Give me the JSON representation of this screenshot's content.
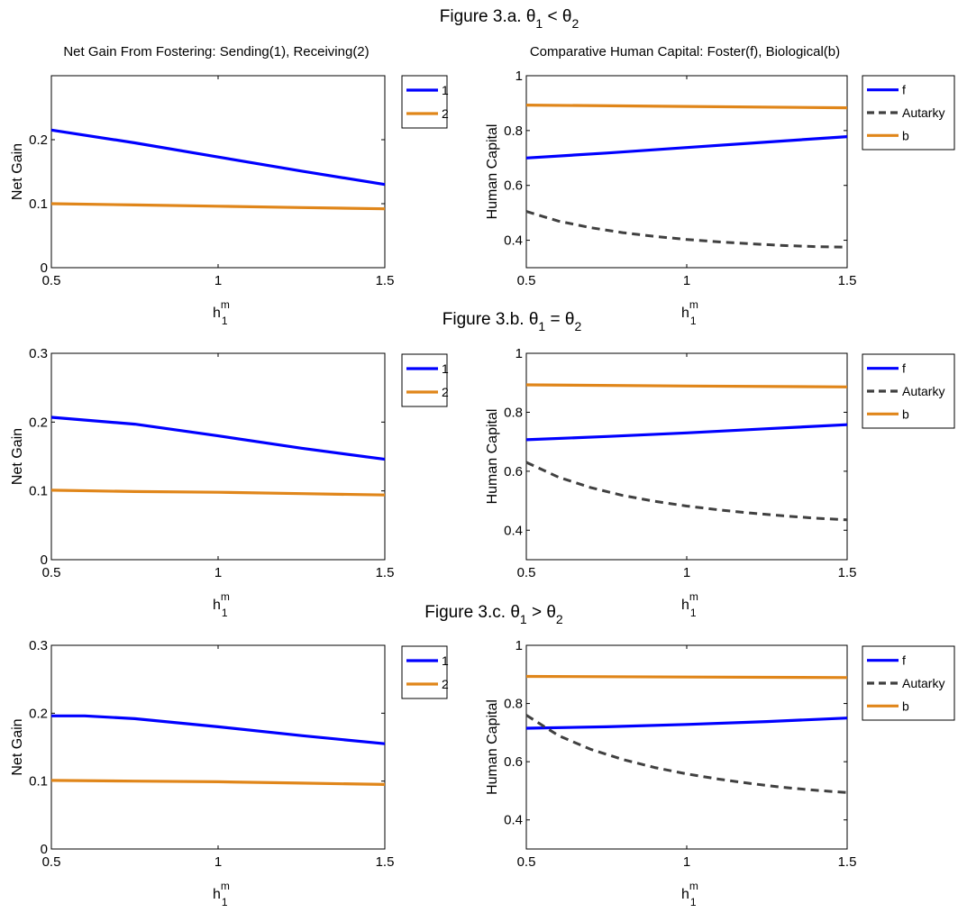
{
  "figure_titles": [
    {
      "prefix": "Figure 3.a. θ",
      "sub1": "1",
      "rel": " < θ",
      "sub2": "2"
    },
    {
      "prefix": "Figure 3.b. θ",
      "sub1": "1",
      "rel": " = θ",
      "sub2": "2"
    },
    {
      "prefix": "Figure 3.c. θ",
      "sub1": "1",
      "rel": " > θ",
      "sub2": "2"
    }
  ],
  "column_titles": {
    "left": "Net Gain From Fostering: Sending(1), Receiving(2)",
    "right": "Comparative Human Capital: Foster(f), Biological(b)"
  },
  "xlabel": {
    "base": "h",
    "sup": "m",
    "sub": "1"
  },
  "colors": {
    "blue": "#0000ff",
    "orange": "#e0861a",
    "gray": "#404040",
    "axis": "#000000",
    "background": "#ffffff"
  },
  "chart_data": [
    {
      "type": "line",
      "panel": "3.a-left",
      "title": "Net Gain From Fostering: Sending(1), Receiving(2)",
      "xlabel": "h1m",
      "ylabel": "Net Gain",
      "xlim": [
        0.5,
        1.5
      ],
      "ylim": [
        0,
        0.3
      ],
      "xticks": [
        0.5,
        1,
        1.5
      ],
      "xticklabels": [
        "0.5",
        "1",
        "1.5"
      ],
      "yticks": [
        0,
        0.1,
        0.2
      ],
      "yticklabels": [
        "0",
        "0.1",
        "0.2"
      ],
      "legend": "outside-right-top",
      "series": [
        {
          "name": "1",
          "color": "blue",
          "dash": "solid",
          "x": [
            0.5,
            0.75,
            1.0,
            1.25,
            1.5
          ],
          "y": [
            0.215,
            0.195,
            0.173,
            0.151,
            0.13
          ]
        },
        {
          "name": "2",
          "color": "orange",
          "dash": "solid",
          "x": [
            0.5,
            0.75,
            1.0,
            1.25,
            1.5
          ],
          "y": [
            0.1,
            0.098,
            0.096,
            0.094,
            0.092
          ]
        }
      ]
    },
    {
      "type": "line",
      "panel": "3.a-right",
      "title": "Comparative Human Capital: Foster(f), Biological(b)",
      "xlabel": "h1m",
      "ylabel": "Human Capital",
      "xlim": [
        0.5,
        1.5
      ],
      "ylim": [
        0.3,
        1.0
      ],
      "xticks": [
        0.5,
        1,
        1.5
      ],
      "xticklabels": [
        "0.5",
        "1",
        "1.5"
      ],
      "yticks": [
        0.4,
        0.6,
        0.8,
        1.0
      ],
      "yticklabels": [
        "0.4",
        "0.6",
        "0.8",
        "1"
      ],
      "legend": "outside-right-top",
      "series": [
        {
          "name": "f",
          "color": "blue",
          "dash": "solid",
          "x": [
            0.5,
            0.75,
            1.0,
            1.25,
            1.5
          ],
          "y": [
            0.7,
            0.718,
            0.738,
            0.758,
            0.778
          ]
        },
        {
          "name": "Autarky",
          "color": "gray",
          "dash": "dashed",
          "x": [
            0.5,
            0.6,
            0.7,
            0.8,
            0.9,
            1.0,
            1.1,
            1.2,
            1.3,
            1.4,
            1.5
          ],
          "y": [
            0.505,
            0.47,
            0.446,
            0.428,
            0.414,
            0.403,
            0.394,
            0.387,
            0.381,
            0.377,
            0.375
          ]
        },
        {
          "name": "b",
          "color": "orange",
          "dash": "solid",
          "x": [
            0.5,
            1.0,
            1.5
          ],
          "y": [
            0.893,
            0.888,
            0.883
          ]
        }
      ]
    },
    {
      "type": "line",
      "panel": "3.b-left",
      "xlabel": "h1m",
      "ylabel": "Net Gain",
      "xlim": [
        0.5,
        1.5
      ],
      "ylim": [
        0,
        0.3
      ],
      "xticks": [
        0.5,
        1,
        1.5
      ],
      "xticklabels": [
        "0.5",
        "1",
        "1.5"
      ],
      "yticks": [
        0,
        0.1,
        0.2,
        0.3
      ],
      "yticklabels": [
        "0",
        "0.1",
        "0.2",
        "0.3"
      ],
      "legend": "outside-right-top",
      "series": [
        {
          "name": "1",
          "color": "blue",
          "dash": "solid",
          "x": [
            0.5,
            0.75,
            1.0,
            1.25,
            1.5
          ],
          "y": [
            0.207,
            0.197,
            0.18,
            0.162,
            0.146
          ]
        },
        {
          "name": "2",
          "color": "orange",
          "dash": "solid",
          "x": [
            0.5,
            0.75,
            1.0,
            1.25,
            1.5
          ],
          "y": [
            0.101,
            0.099,
            0.098,
            0.096,
            0.094
          ]
        }
      ]
    },
    {
      "type": "line",
      "panel": "3.b-right",
      "xlabel": "h1m",
      "ylabel": "Human Capital",
      "xlim": [
        0.5,
        1.5
      ],
      "ylim": [
        0.3,
        1.0
      ],
      "xticks": [
        0.5,
        1,
        1.5
      ],
      "xticklabels": [
        "0.5",
        "1",
        "1.5"
      ],
      "yticks": [
        0.4,
        0.6,
        0.8,
        1.0
      ],
      "yticklabels": [
        "0.4",
        "0.6",
        "0.8",
        "1"
      ],
      "legend": "outside-right-top",
      "series": [
        {
          "name": "f",
          "color": "blue",
          "dash": "solid",
          "x": [
            0.5,
            0.75,
            1.0,
            1.25,
            1.5
          ],
          "y": [
            0.707,
            0.718,
            0.73,
            0.744,
            0.758
          ]
        },
        {
          "name": "Autarky",
          "color": "gray",
          "dash": "dashed",
          "x": [
            0.5,
            0.6,
            0.7,
            0.8,
            0.9,
            1.0,
            1.1,
            1.2,
            1.3,
            1.4,
            1.5
          ],
          "y": [
            0.63,
            0.58,
            0.545,
            0.518,
            0.498,
            0.482,
            0.469,
            0.458,
            0.449,
            0.441,
            0.435
          ]
        },
        {
          "name": "b",
          "color": "orange",
          "dash": "solid",
          "x": [
            0.5,
            1.0,
            1.5
          ],
          "y": [
            0.893,
            0.889,
            0.886
          ]
        }
      ]
    },
    {
      "type": "line",
      "panel": "3.c-left",
      "xlabel": "h1m",
      "ylabel": "Net Gain",
      "xlim": [
        0.5,
        1.5
      ],
      "ylim": [
        0,
        0.3
      ],
      "xticks": [
        0.5,
        1,
        1.5
      ],
      "xticklabels": [
        "0.5",
        "1",
        "1.5"
      ],
      "yticks": [
        0,
        0.1,
        0.2,
        0.3
      ],
      "yticklabels": [
        "0",
        "0.1",
        "0.2",
        "0.3"
      ],
      "legend": "outside-right-top",
      "series": [
        {
          "name": "1",
          "color": "blue",
          "dash": "solid",
          "x": [
            0.5,
            0.6,
            0.75,
            1.0,
            1.25,
            1.5
          ],
          "y": [
            0.196,
            0.196,
            0.192,
            0.18,
            0.167,
            0.155
          ]
        },
        {
          "name": "2",
          "color": "orange",
          "dash": "solid",
          "x": [
            0.5,
            0.75,
            1.0,
            1.25,
            1.5
          ],
          "y": [
            0.101,
            0.1,
            0.099,
            0.097,
            0.095
          ]
        }
      ]
    },
    {
      "type": "line",
      "panel": "3.c-right",
      "xlabel": "h1m",
      "ylabel": "Human Capital",
      "xlim": [
        0.5,
        1.5
      ],
      "ylim": [
        0.3,
        1.0
      ],
      "xticks": [
        0.5,
        1,
        1.5
      ],
      "xticklabels": [
        "0.5",
        "1",
        "1.5"
      ],
      "yticks": [
        0.4,
        0.6,
        0.8,
        1.0
      ],
      "yticklabels": [
        "0.4",
        "0.6",
        "0.8",
        "1"
      ],
      "legend": "outside-right-top",
      "series": [
        {
          "name": "f",
          "color": "blue",
          "dash": "solid",
          "x": [
            0.5,
            0.75,
            1.0,
            1.25,
            1.5
          ],
          "y": [
            0.715,
            0.72,
            0.728,
            0.738,
            0.75
          ]
        },
        {
          "name": "Autarky",
          "color": "gray",
          "dash": "dashed",
          "x": [
            0.5,
            0.6,
            0.7,
            0.8,
            0.9,
            1.0,
            1.1,
            1.2,
            1.3,
            1.4,
            1.5
          ],
          "y": [
            0.76,
            0.69,
            0.643,
            0.608,
            0.58,
            0.558,
            0.54,
            0.525,
            0.512,
            0.502,
            0.494
          ]
        },
        {
          "name": "b",
          "color": "orange",
          "dash": "solid",
          "x": [
            0.5,
            1.0,
            1.5
          ],
          "y": [
            0.893,
            0.891,
            0.889
          ]
        }
      ]
    }
  ]
}
